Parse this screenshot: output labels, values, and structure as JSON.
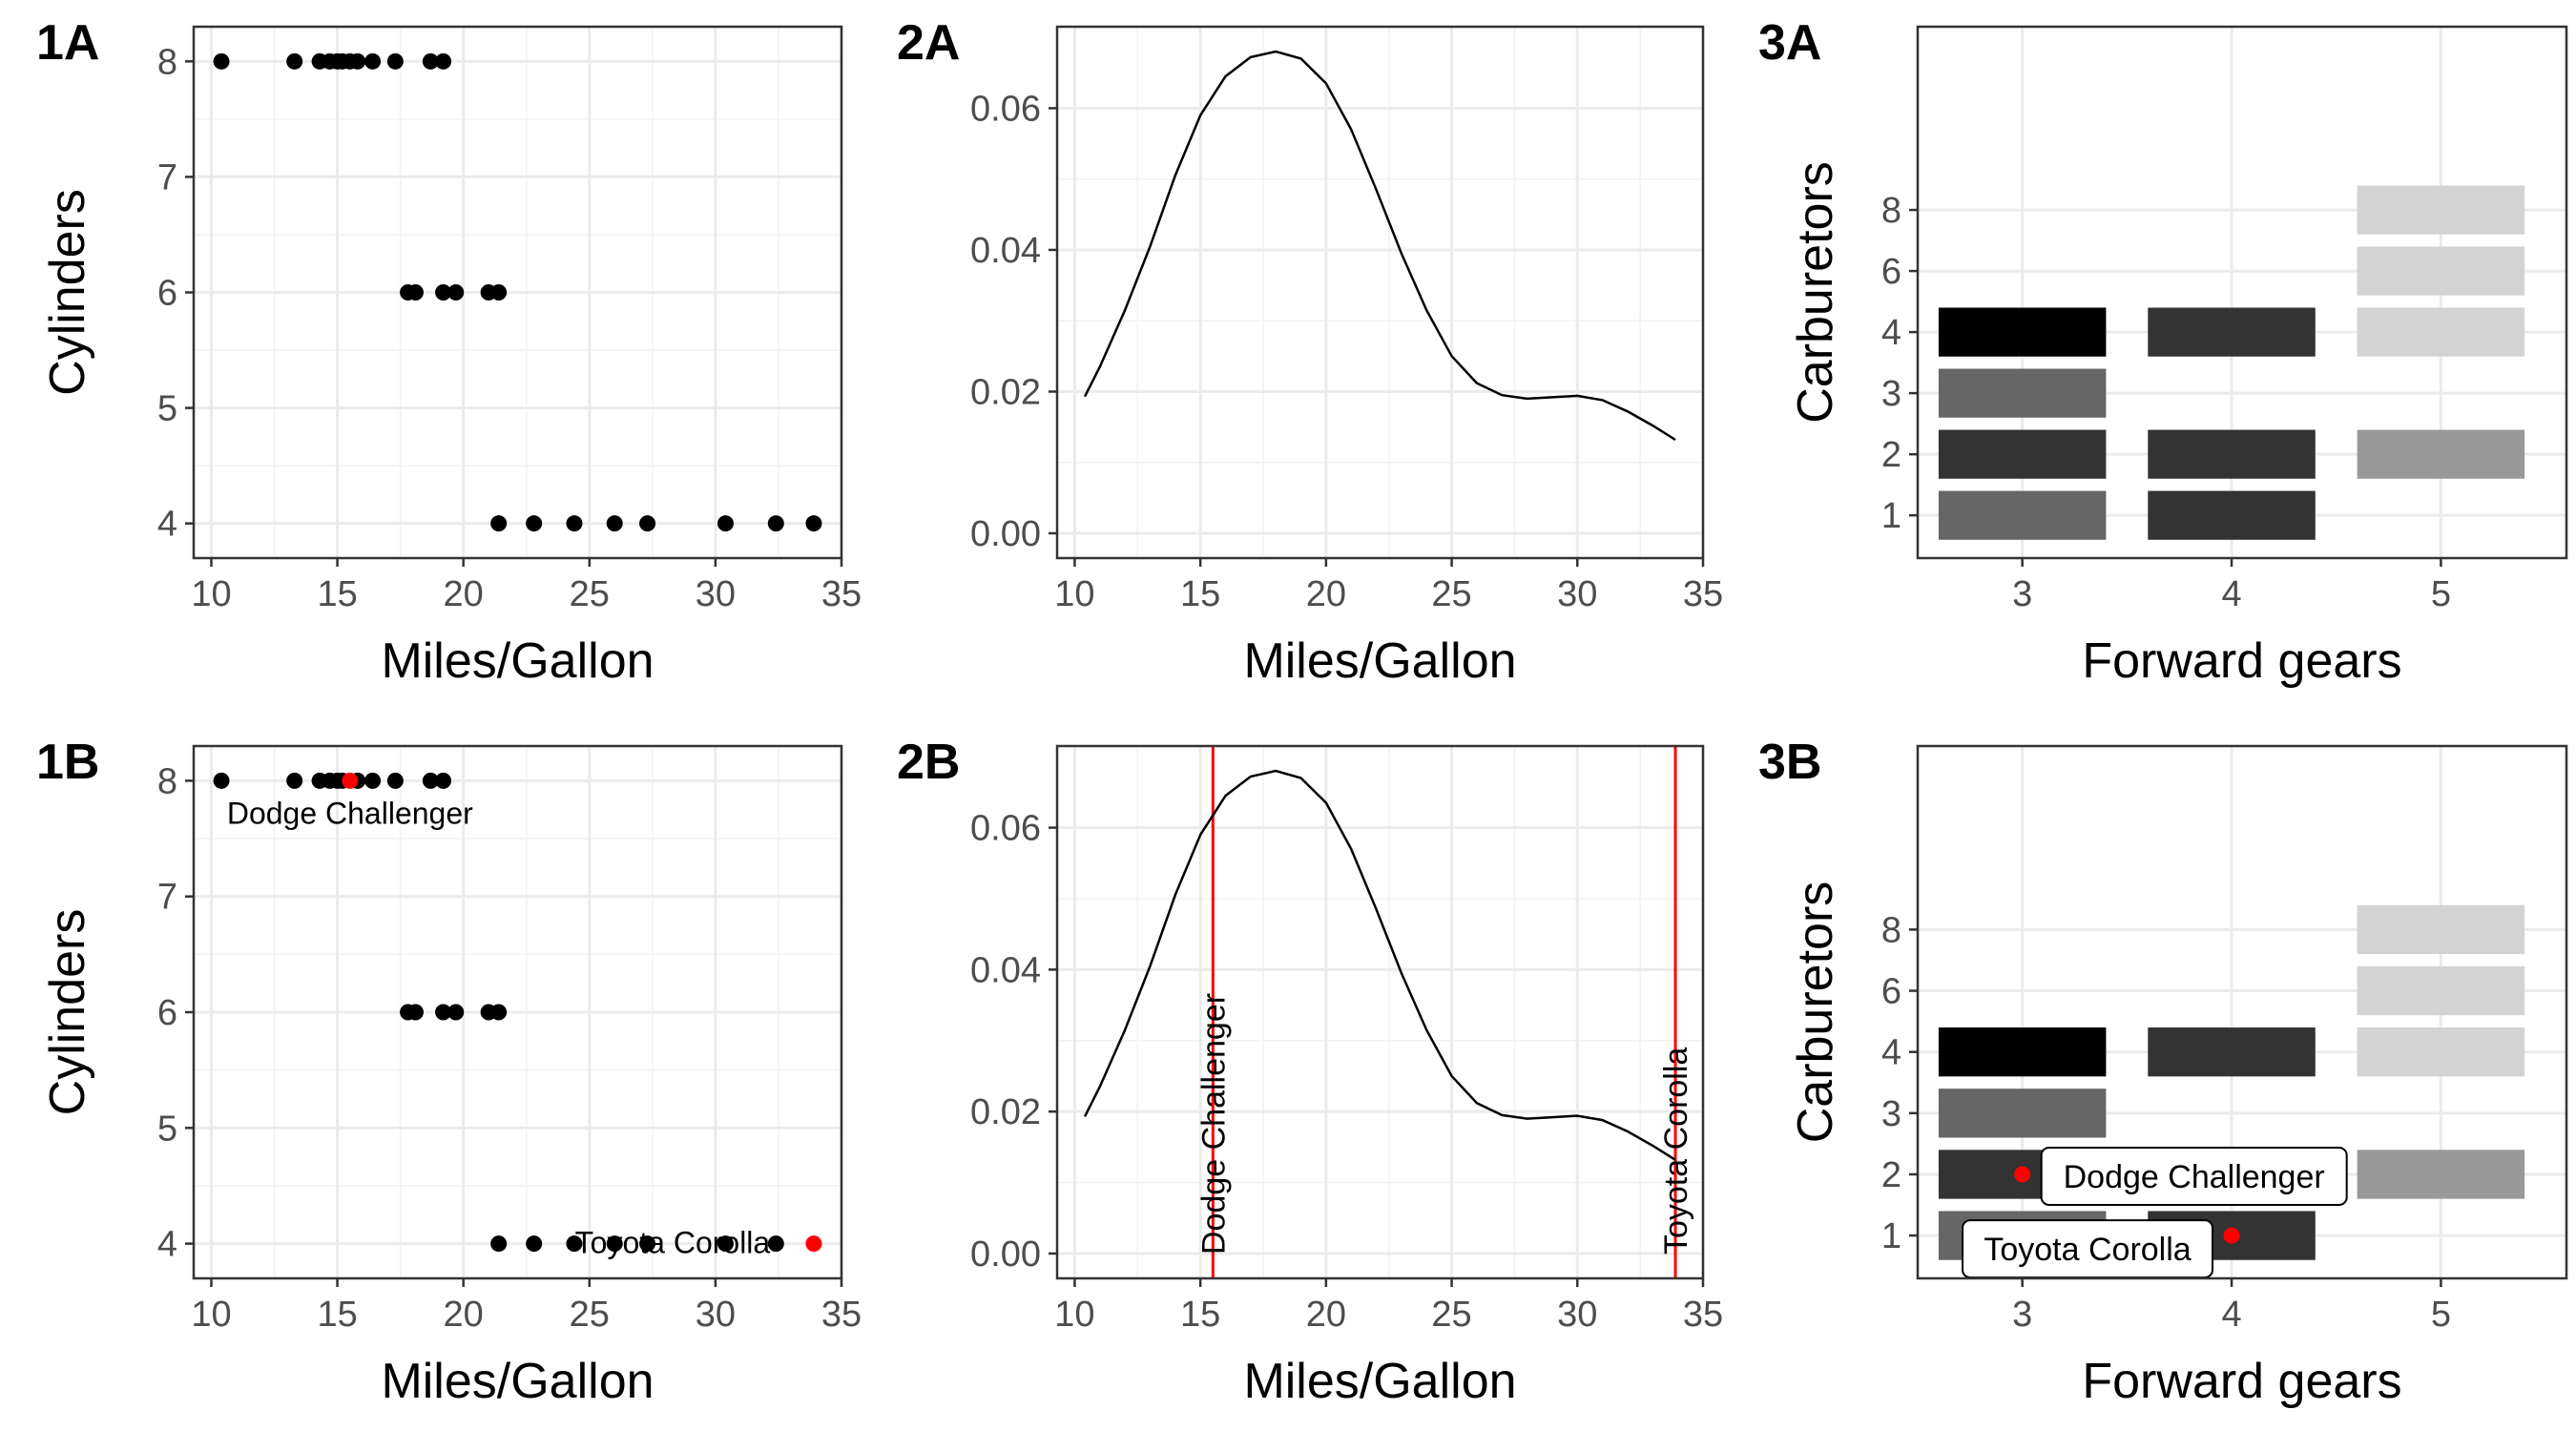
{
  "chart_data": [
    {
      "panel": "1A",
      "type": "scatter",
      "xlabel": "Miles/Gallon",
      "ylabel": "Cylinders",
      "xlim": [
        9.3,
        35.0
      ],
      "ylim": [
        3.7,
        8.3
      ],
      "xticks": [
        10,
        15,
        20,
        25,
        30,
        35
      ],
      "yticks": [
        4,
        5,
        6,
        7,
        8
      ],
      "points": [
        {
          "x": 10.4,
          "y": 8
        },
        {
          "x": 13.3,
          "y": 8
        },
        {
          "x": 14.3,
          "y": 8
        },
        {
          "x": 14.7,
          "y": 8
        },
        {
          "x": 15.0,
          "y": 8
        },
        {
          "x": 15.2,
          "y": 8
        },
        {
          "x": 15.5,
          "y": 8
        },
        {
          "x": 15.8,
          "y": 8
        },
        {
          "x": 16.4,
          "y": 8
        },
        {
          "x": 17.3,
          "y": 8
        },
        {
          "x": 18.7,
          "y": 8
        },
        {
          "x": 19.2,
          "y": 8
        },
        {
          "x": 17.8,
          "y": 6
        },
        {
          "x": 18.1,
          "y": 6
        },
        {
          "x": 19.2,
          "y": 6
        },
        {
          "x": 19.7,
          "y": 6
        },
        {
          "x": 21.0,
          "y": 6
        },
        {
          "x": 21.4,
          "y": 6
        },
        {
          "x": 21.4,
          "y": 4
        },
        {
          "x": 22.8,
          "y": 4
        },
        {
          "x": 24.4,
          "y": 4
        },
        {
          "x": 26.0,
          "y": 4
        },
        {
          "x": 27.3,
          "y": 4
        },
        {
          "x": 30.4,
          "y": 4
        },
        {
          "x": 32.4,
          "y": 4
        },
        {
          "x": 33.9,
          "y": 4
        }
      ],
      "grid": true
    },
    {
      "panel": "2A",
      "type": "line",
      "xlabel": "Miles/Gallon",
      "ylabel": "",
      "xlim": [
        9.3,
        35.0
      ],
      "ylim": [
        -0.0035,
        0.0715
      ],
      "xticks": [
        10,
        15,
        20,
        25,
        30,
        35
      ],
      "yticks": [
        0.0,
        0.02,
        0.04,
        0.06
      ],
      "ytick_labels": [
        "0.00",
        "0.02",
        "0.04",
        "0.06"
      ],
      "x": [
        10.4,
        11.0,
        12.0,
        13.0,
        14.0,
        15.0,
        16.0,
        17.0,
        18.0,
        19.0,
        20.0,
        21.0,
        22.0,
        23.0,
        24.0,
        25.0,
        26.0,
        27.0,
        28.0,
        29.0,
        30.0,
        31.0,
        32.0,
        33.0,
        33.9
      ],
      "y": [
        0.0193,
        0.0235,
        0.0315,
        0.0405,
        0.0505,
        0.059,
        0.0645,
        0.0672,
        0.068,
        0.067,
        0.0635,
        0.057,
        0.0485,
        0.0395,
        0.0315,
        0.025,
        0.0212,
        0.0195,
        0.019,
        0.0192,
        0.0194,
        0.0188,
        0.0172,
        0.0152,
        0.0132
      ],
      "grid": true
    },
    {
      "panel": "3A",
      "type": "heatmap",
      "xlabel": "Forward gears",
      "ylabel": "Carburetors",
      "xlim": [
        2.5,
        5.6
      ],
      "ylim": [
        0.3,
        9.0
      ],
      "xticks": [
        3,
        4,
        5
      ],
      "yticks": [
        1,
        2,
        3,
        4,
        6,
        8
      ],
      "y_positions": {
        "1": 1,
        "2": 2,
        "3": 3,
        "4": 4,
        "6": 5,
        "8": 6
      },
      "cells": [
        {
          "gear": 3,
          "carb": 1,
          "fill": "#666666"
        },
        {
          "gear": 3,
          "carb": 2,
          "fill": "#333333"
        },
        {
          "gear": 3,
          "carb": 3,
          "fill": "#666666"
        },
        {
          "gear": 3,
          "carb": 4,
          "fill": "#000000"
        },
        {
          "gear": 4,
          "carb": 1,
          "fill": "#333333"
        },
        {
          "gear": 4,
          "carb": 2,
          "fill": "#333333"
        },
        {
          "gear": 4,
          "carb": 4,
          "fill": "#333333"
        },
        {
          "gear": 5,
          "carb": 2,
          "fill": "#999999"
        },
        {
          "gear": 5,
          "carb": 4,
          "fill": "#d3d3d3"
        },
        {
          "gear": 5,
          "carb": 6,
          "fill": "#d3d3d3"
        },
        {
          "gear": 5,
          "carb": 8,
          "fill": "#d3d3d3"
        }
      ],
      "grid": true
    },
    {
      "panel": "1B",
      "type": "scatter",
      "xlabel": "Miles/Gallon",
      "ylabel": "Cylinders",
      "xlim": [
        9.3,
        35.0
      ],
      "ylim": [
        3.7,
        8.3
      ],
      "xticks": [
        10,
        15,
        20,
        25,
        30,
        35
      ],
      "yticks": [
        4,
        5,
        6,
        7,
        8
      ],
      "points": [
        {
          "x": 10.4,
          "y": 8
        },
        {
          "x": 13.3,
          "y": 8
        },
        {
          "x": 14.3,
          "y": 8
        },
        {
          "x": 14.7,
          "y": 8
        },
        {
          "x": 15.0,
          "y": 8
        },
        {
          "x": 15.2,
          "y": 8
        },
        {
          "x": 15.8,
          "y": 8
        },
        {
          "x": 16.4,
          "y": 8
        },
        {
          "x": 17.3,
          "y": 8
        },
        {
          "x": 18.7,
          "y": 8
        },
        {
          "x": 19.2,
          "y": 8
        },
        {
          "x": 17.8,
          "y": 6
        },
        {
          "x": 18.1,
          "y": 6
        },
        {
          "x": 19.2,
          "y": 6
        },
        {
          "x": 19.7,
          "y": 6
        },
        {
          "x": 21.0,
          "y": 6
        },
        {
          "x": 21.4,
          "y": 6
        },
        {
          "x": 21.4,
          "y": 4
        },
        {
          "x": 22.8,
          "y": 4
        },
        {
          "x": 24.4,
          "y": 4
        },
        {
          "x": 26.0,
          "y": 4
        },
        {
          "x": 27.3,
          "y": 4
        },
        {
          "x": 30.4,
          "y": 4
        },
        {
          "x": 32.4,
          "y": 4
        }
      ],
      "highlight_color": "#ff0000",
      "highlighted": [
        {
          "x": 15.5,
          "y": 8,
          "label": "Dodge Challenger"
        },
        {
          "x": 33.9,
          "y": 4,
          "label": "Toyota Corolla"
        }
      ],
      "grid": true
    },
    {
      "panel": "2B",
      "type": "line",
      "xlabel": "Miles/Gallon",
      "ylabel": "",
      "xlim": [
        9.3,
        35.0
      ],
      "ylim": [
        -0.0035,
        0.0715
      ],
      "xticks": [
        10,
        15,
        20,
        25,
        30,
        35
      ],
      "yticks": [
        0.0,
        0.02,
        0.04,
        0.06
      ],
      "ytick_labels": [
        "0.00",
        "0.02",
        "0.04",
        "0.06"
      ],
      "x": [
        10.4,
        11.0,
        12.0,
        13.0,
        14.0,
        15.0,
        16.0,
        17.0,
        18.0,
        19.0,
        20.0,
        21.0,
        22.0,
        23.0,
        24.0,
        25.0,
        26.0,
        27.0,
        28.0,
        29.0,
        30.0,
        31.0,
        32.0,
        33.0,
        33.9
      ],
      "y": [
        0.0193,
        0.0235,
        0.0315,
        0.0405,
        0.0505,
        0.059,
        0.0645,
        0.0672,
        0.068,
        0.067,
        0.0635,
        0.057,
        0.0485,
        0.0395,
        0.0315,
        0.025,
        0.0212,
        0.0195,
        0.019,
        0.0192,
        0.0194,
        0.0188,
        0.0172,
        0.0152,
        0.0132
      ],
      "vlines": [
        {
          "x": 15.5,
          "label": "Dodge Challenger"
        },
        {
          "x": 33.9,
          "label": "Toyota Corolla"
        }
      ],
      "vline_color": "#ff0000",
      "grid": true
    },
    {
      "panel": "3B",
      "type": "heatmap",
      "xlabel": "Forward gears",
      "ylabel": "Carburetors",
      "xlim": [
        2.5,
        5.6
      ],
      "ylim": [
        0.3,
        9.0
      ],
      "xticks": [
        3,
        4,
        5
      ],
      "yticks": [
        1,
        2,
        3,
        4,
        6,
        8
      ],
      "y_positions": {
        "1": 1,
        "2": 2,
        "3": 3,
        "4": 4,
        "6": 5,
        "8": 6
      },
      "cells": [
        {
          "gear": 3,
          "carb": 1,
          "fill": "#666666"
        },
        {
          "gear": 3,
          "carb": 2,
          "fill": "#333333"
        },
        {
          "gear": 3,
          "carb": 3,
          "fill": "#666666"
        },
        {
          "gear": 3,
          "carb": 4,
          "fill": "#000000"
        },
        {
          "gear": 4,
          "carb": 1,
          "fill": "#333333"
        },
        {
          "gear": 4,
          "carb": 2,
          "fill": "#333333"
        },
        {
          "gear": 4,
          "carb": 4,
          "fill": "#333333"
        },
        {
          "gear": 5,
          "carb": 2,
          "fill": "#999999"
        },
        {
          "gear": 5,
          "carb": 4,
          "fill": "#d3d3d3"
        },
        {
          "gear": 5,
          "carb": 6,
          "fill": "#d3d3d3"
        },
        {
          "gear": 5,
          "carb": 8,
          "fill": "#d3d3d3"
        }
      ],
      "highlight_color": "#ff0000",
      "highlighted": [
        {
          "gear": 3,
          "carb": 2,
          "label": "Dodge Challenger"
        },
        {
          "gear": 4,
          "carb": 1,
          "label": "Toyota Corolla"
        }
      ],
      "grid": true
    }
  ]
}
